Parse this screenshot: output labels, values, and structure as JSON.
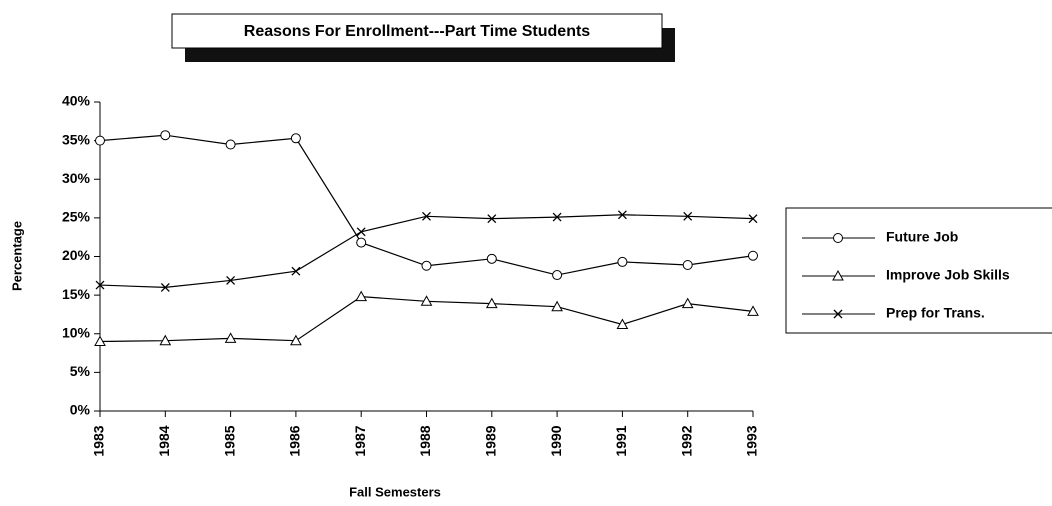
{
  "chart_data": {
    "type": "line",
    "title": "Reasons For Enrollment---Part Time Students",
    "x_label": "Fall Semesters",
    "y_label": "Percentage",
    "categories": [
      "1983",
      "1984",
      "1985",
      "1986",
      "1987",
      "1988",
      "1989",
      "1990",
      "1991",
      "1992",
      "1993"
    ],
    "series": [
      {
        "name": "Future Job",
        "color": "#000000",
        "marker": "circle",
        "values": [
          35,
          35.7,
          34.5,
          35.3,
          21.8,
          18.8,
          19.7,
          17.6,
          19.3,
          18.9,
          20.1
        ]
      },
      {
        "name": "Improve Job Skills",
        "color": "#000000",
        "marker": "triangle",
        "values": [
          9,
          9.1,
          9.4,
          9.1,
          14.8,
          14.2,
          13.9,
          13.5,
          11.2,
          13.9,
          12.9
        ]
      },
      {
        "name": "Prep for Trans.",
        "color": "#000000",
        "marker": "x",
        "values": [
          16.3,
          16,
          16.9,
          18.1,
          23.2,
          25.2,
          24.9,
          25.1,
          25.4,
          25.2,
          24.9
        ]
      }
    ],
    "ylim": [
      0,
      40
    ],
    "yticks": [
      {
        "value": 0,
        "label": "0%"
      },
      {
        "value": 5,
        "label": "5%"
      },
      {
        "value": 10,
        "label": "10%"
      },
      {
        "value": 15,
        "label": "15%"
      },
      {
        "value": 20,
        "label": "20%"
      },
      {
        "value": 25,
        "label": "25%"
      },
      {
        "value": 30,
        "label": "30%"
      },
      {
        "value": 35,
        "label": "35%"
      },
      {
        "value": 40,
        "label": "40%"
      }
    ],
    "legend": "right"
  }
}
